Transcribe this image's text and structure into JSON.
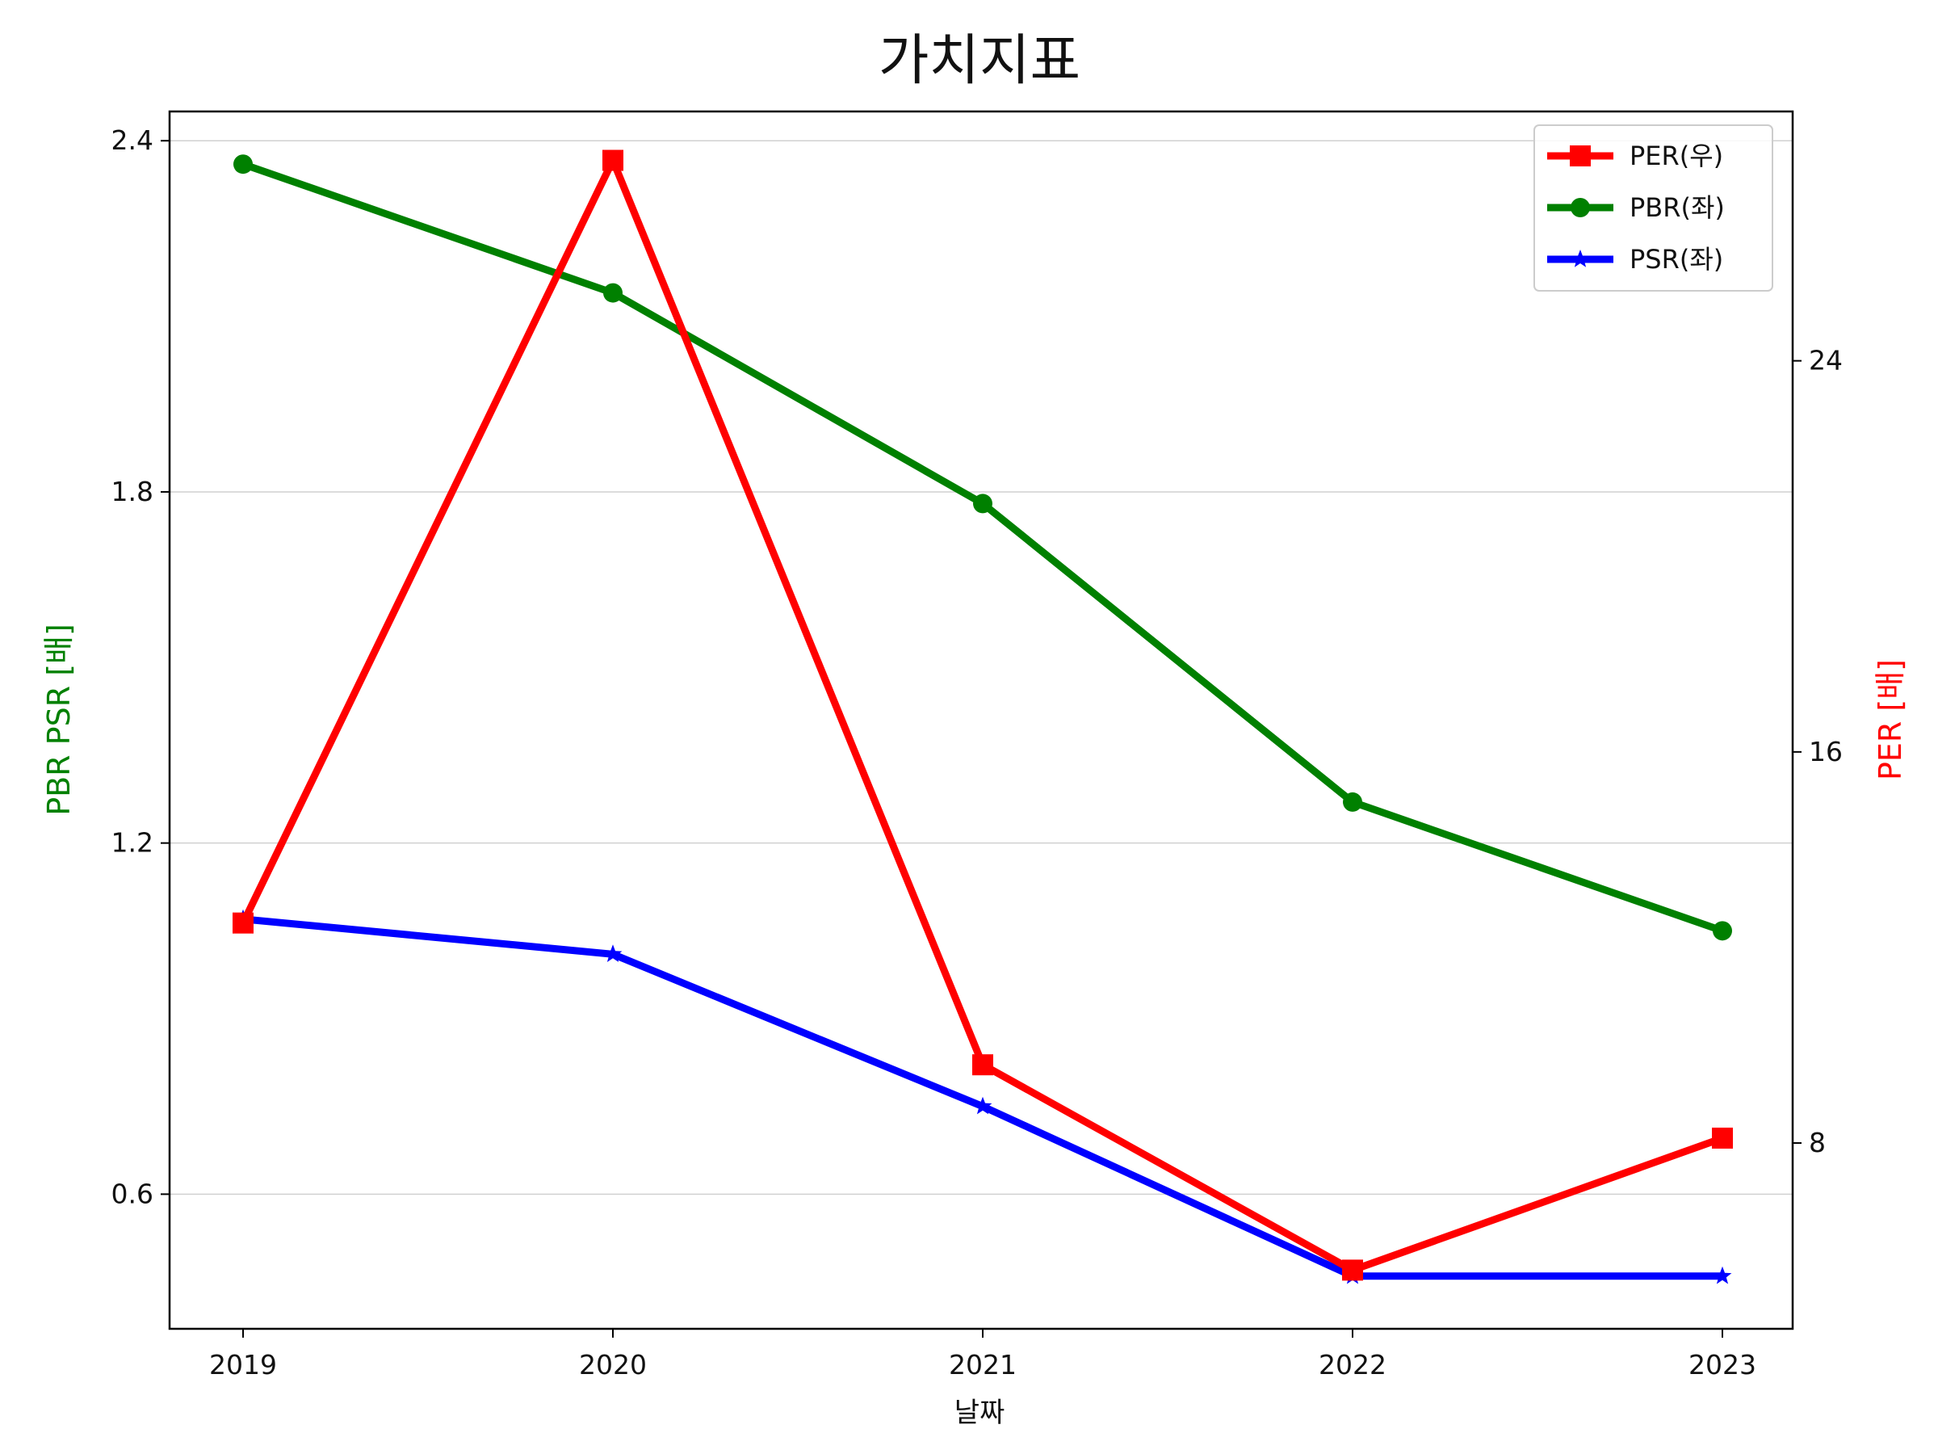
{
  "chart_data": {
    "type": "line",
    "title": "가치지표",
    "xlabel": "날짜",
    "ylabel_left": "PBR PSR [배]",
    "ylabel_right": "PER [배]",
    "categories": [
      "2019",
      "2020",
      "2021",
      "2022",
      "2023"
    ],
    "left_axis": {
      "ylim": [
        0.37,
        2.45
      ],
      "ticks": [
        0.6,
        1.2,
        1.8,
        2.4
      ],
      "tick_labels": [
        "0.6",
        "1.2",
        "1.8",
        "2.4"
      ],
      "label_color": "#008000"
    },
    "right_axis": {
      "ylim": [
        4.2,
        29.1
      ],
      "ticks": [
        8,
        16,
        24
      ],
      "tick_labels": [
        "8",
        "16",
        "24"
      ],
      "label_color": "#ff0000"
    },
    "grid": "horizontal, left axis",
    "legend_position": "top-right",
    "series": [
      {
        "name": "PER(우)",
        "axis": "right",
        "color": "#ff0000",
        "marker": "square",
        "values": [
          12.5,
          28.1,
          9.6,
          5.4,
          8.1
        ]
      },
      {
        "name": "PBR(좌)",
        "axis": "left",
        "color": "#008000",
        "marker": "circle",
        "values": [
          2.36,
          2.14,
          1.78,
          1.27,
          1.05
        ]
      },
      {
        "name": "PSR(좌)",
        "axis": "left",
        "color": "#0000ff",
        "marker": "star",
        "values": [
          1.07,
          1.01,
          0.75,
          0.46,
          0.46
        ]
      }
    ]
  }
}
